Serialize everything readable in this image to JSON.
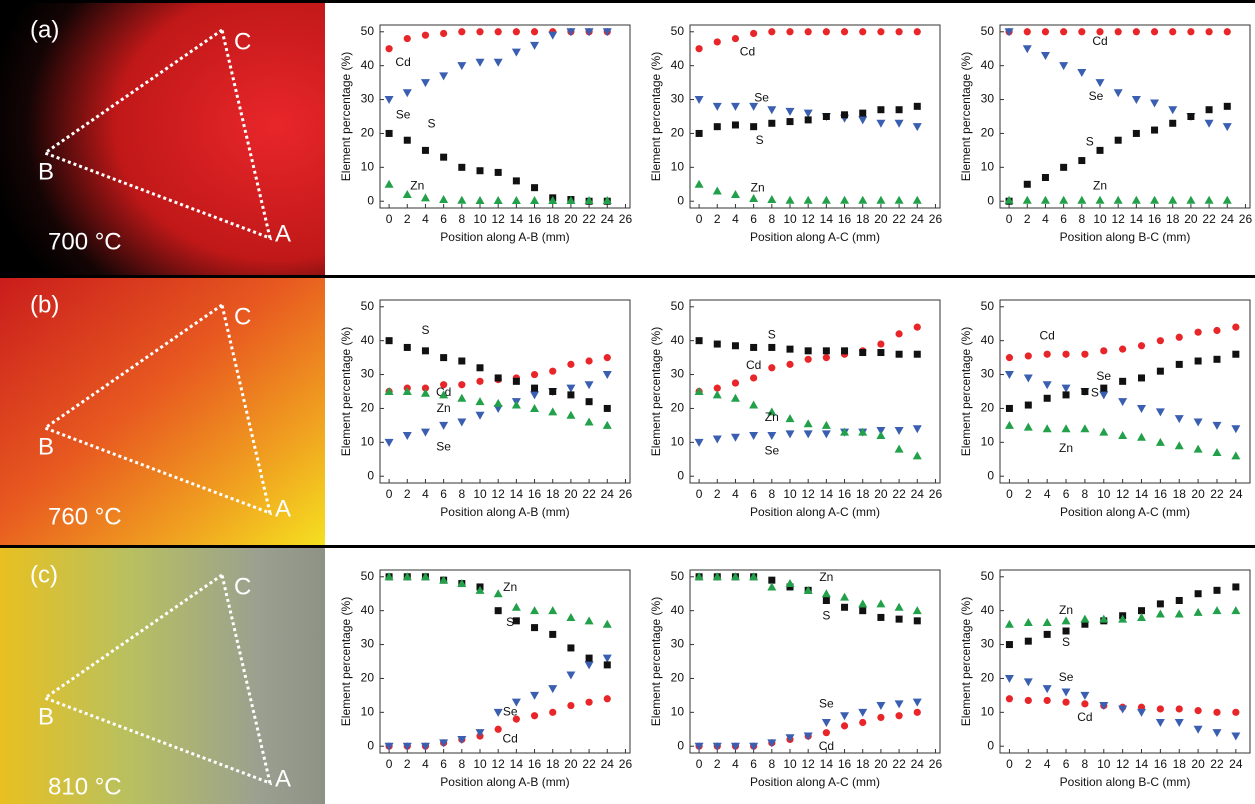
{
  "photos": [
    {
      "label": "(a)",
      "vertex_labels": [
        "C",
        "B",
        "A"
      ],
      "temperature": "700 °C"
    },
    {
      "label": "(b)",
      "vertex_labels": [
        "C",
        "B",
        "A"
      ],
      "temperature": "760 °C"
    },
    {
      "label": "(c)",
      "vertex_labels": [
        "C",
        "B",
        "A"
      ],
      "temperature": "810 °C"
    }
  ],
  "chart_data": [
    {
      "type": "scatter",
      "x_label": "Position along A-B (mm)",
      "y_label": "Element percentage (%)",
      "x": [
        0,
        2,
        4,
        6,
        8,
        10,
        12,
        14,
        16,
        18,
        20,
        22,
        24
      ],
      "xlim": [
        -1,
        26.5
      ],
      "ylim": [
        -2,
        52
      ],
      "xticks": [
        0,
        2,
        4,
        6,
        8,
        10,
        12,
        14,
        16,
        18,
        20,
        22,
        24,
        26
      ],
      "yticks": [
        0,
        10,
        20,
        30,
        40,
        50
      ],
      "series": [
        {
          "name": "Cd",
          "color": "#e8262a",
          "marker": "circle",
          "values": [
            45,
            48,
            49,
            49.5,
            50,
            50,
            50,
            50,
            50,
            50,
            50,
            50,
            50
          ]
        },
        {
          "name": "Se",
          "color": "#3a5fb0",
          "marker": "triangle-down",
          "values": [
            30,
            32,
            35,
            37,
            40,
            41,
            41,
            44,
            46,
            49,
            50,
            50,
            50
          ]
        },
        {
          "name": "S",
          "color": "#111111",
          "marker": "square",
          "values": [
            20,
            18,
            15,
            13,
            10,
            9,
            8.5,
            6,
            4,
            1,
            0.5,
            0,
            0
          ]
        },
        {
          "name": "Zn",
          "color": "#22a04a",
          "marker": "triangle-up",
          "values": [
            5,
            2,
            1,
            0.5,
            0.3,
            0.2,
            0.2,
            0.2,
            0.2,
            0.2,
            0.2,
            0.2,
            0.2
          ]
        }
      ]
    },
    {
      "type": "scatter",
      "x_label": "Position along A-C (mm)",
      "y_label": "Element percentage (%)",
      "x": [
        0,
        2,
        4,
        6,
        8,
        10,
        12,
        14,
        16,
        18,
        20,
        22,
        24
      ],
      "xlim": [
        -1,
        26.5
      ],
      "ylim": [
        -2,
        52
      ],
      "xticks": [
        0,
        2,
        4,
        6,
        8,
        10,
        12,
        14,
        16,
        18,
        20,
        22,
        24,
        26
      ],
      "yticks": [
        0,
        10,
        20,
        30,
        40,
        50
      ],
      "series": [
        {
          "name": "Cd",
          "color": "#e8262a",
          "marker": "circle",
          "values": [
            45,
            47,
            48,
            49.5,
            50,
            50,
            50,
            50,
            50,
            50,
            50,
            50,
            50
          ]
        },
        {
          "name": "Se",
          "color": "#3a5fb0",
          "marker": "triangle-down",
          "values": [
            30,
            28,
            28,
            28,
            27,
            26.5,
            26,
            25,
            24.5,
            24,
            23,
            23,
            22
          ]
        },
        {
          "name": "S",
          "color": "#111111",
          "marker": "square",
          "values": [
            20,
            22,
            22.5,
            22,
            23,
            23.5,
            24,
            25,
            25.5,
            26,
            27,
            27,
            28
          ]
        },
        {
          "name": "Zn",
          "color": "#22a04a",
          "marker": "triangle-up",
          "values": [
            5,
            3,
            2,
            0.8,
            0.5,
            0.3,
            0.3,
            0.3,
            0.3,
            0.3,
            0.3,
            0.3,
            0.3
          ]
        }
      ]
    },
    {
      "type": "scatter",
      "x_label": "Position along B-C (mm)",
      "y_label": "Element percentage (%)",
      "x": [
        0,
        2,
        4,
        6,
        8,
        10,
        12,
        14,
        16,
        18,
        20,
        22,
        24
      ],
      "xlim": [
        -1,
        26.5
      ],
      "ylim": [
        -2,
        52
      ],
      "xticks": [
        0,
        2,
        4,
        6,
        8,
        10,
        12,
        14,
        16,
        18,
        20,
        22,
        24,
        26
      ],
      "yticks": [
        0,
        10,
        20,
        30,
        40,
        50
      ],
      "series": [
        {
          "name": "Cd",
          "color": "#e8262a",
          "marker": "circle",
          "values": [
            50,
            50,
            50,
            50,
            50,
            50,
            50,
            50,
            50,
            50,
            50,
            50,
            50
          ]
        },
        {
          "name": "Se",
          "color": "#3a5fb0",
          "marker": "triangle-down",
          "values": [
            50,
            45,
            43,
            40,
            38,
            35,
            32,
            30,
            29,
            27,
            25,
            23,
            22
          ]
        },
        {
          "name": "S",
          "color": "#111111",
          "marker": "square",
          "values": [
            0,
            5,
            7,
            10,
            12,
            15,
            18,
            20,
            21,
            23,
            25,
            27,
            28
          ]
        },
        {
          "name": "Zn",
          "color": "#22a04a",
          "marker": "triangle-up",
          "values": [
            0.3,
            0.3,
            0.3,
            0.3,
            0.3,
            0.3,
            0.3,
            0.3,
            0.3,
            0.3,
            0.3,
            0.3,
            0.3
          ]
        }
      ]
    },
    {
      "type": "scatter",
      "x_label": "Position along A-B (mm)",
      "y_label": "Element percentage (%)",
      "x": [
        0,
        2,
        4,
        6,
        8,
        10,
        12,
        14,
        16,
        18,
        20,
        22,
        24
      ],
      "xlim": [
        -1,
        26.5
      ],
      "ylim": [
        -2,
        52
      ],
      "xticks": [
        0,
        2,
        4,
        6,
        8,
        10,
        12,
        14,
        16,
        18,
        20,
        22,
        24,
        26
      ],
      "yticks": [
        0,
        10,
        20,
        30,
        40,
        50
      ],
      "series": [
        {
          "name": "Cd",
          "color": "#e8262a",
          "marker": "circle",
          "values": [
            25,
            26,
            26,
            27,
            27,
            28,
            28.5,
            29,
            30,
            31,
            33,
            34,
            35
          ]
        },
        {
          "name": "Se",
          "color": "#3a5fb0",
          "marker": "triangle-down",
          "values": [
            10,
            12,
            13,
            15,
            16,
            18,
            20,
            22,
            24,
            25,
            26,
            27,
            30
          ]
        },
        {
          "name": "S",
          "color": "#111111",
          "marker": "square",
          "values": [
            40,
            38,
            37,
            35,
            34,
            32,
            29,
            28,
            26,
            25,
            24,
            22,
            20
          ]
        },
        {
          "name": "Zn",
          "color": "#22a04a",
          "marker": "triangle-up",
          "values": [
            25,
            25,
            24.5,
            24,
            23,
            22,
            21.5,
            21,
            20,
            19,
            18,
            16,
            15
          ]
        }
      ]
    },
    {
      "type": "scatter",
      "x_label": "Position along A-C (mm)",
      "y_label": "Element percentage (%)",
      "x": [
        0,
        2,
        4,
        6,
        8,
        10,
        12,
        14,
        16,
        18,
        20,
        22,
        24
      ],
      "xlim": [
        -1,
        26.5
      ],
      "ylim": [
        -2,
        52
      ],
      "xticks": [
        0,
        2,
        4,
        6,
        8,
        10,
        12,
        14,
        16,
        18,
        20,
        22,
        24,
        26
      ],
      "yticks": [
        0,
        10,
        20,
        30,
        40,
        50
      ],
      "series": [
        {
          "name": "Cd",
          "color": "#e8262a",
          "marker": "circle",
          "values": [
            25,
            26,
            27.5,
            29,
            32,
            33,
            34.5,
            35,
            36,
            37,
            39,
            42,
            44
          ]
        },
        {
          "name": "Se",
          "color": "#3a5fb0",
          "marker": "triangle-down",
          "values": [
            10,
            11,
            11.5,
            12,
            12,
            12.5,
            12.5,
            12.5,
            13,
            13,
            13.5,
            13.5,
            14
          ]
        },
        {
          "name": "S",
          "color": "#111111",
          "marker": "square",
          "values": [
            40,
            39,
            38.5,
            38,
            38,
            37.5,
            37,
            37,
            37,
            36.5,
            36.5,
            36,
            36
          ]
        },
        {
          "name": "Zn",
          "color": "#22a04a",
          "marker": "triangle-up",
          "values": [
            25,
            24,
            23,
            21,
            19,
            17,
            15.5,
            15,
            13,
            13,
            12,
            8,
            6
          ]
        }
      ]
    },
    {
      "type": "scatter",
      "x_label": "Position along A-C (mm)",
      "y_label": "Element percentage (%)",
      "x": [
        0,
        2,
        4,
        6,
        8,
        10,
        12,
        14,
        16,
        18,
        20,
        22,
        24
      ],
      "xlim": [
        -1,
        25.5
      ],
      "ylim": [
        -2,
        52
      ],
      "xticks": [
        0,
        2,
        4,
        6,
        8,
        10,
        12,
        14,
        16,
        18,
        20,
        22,
        24
      ],
      "yticks": [
        0,
        10,
        20,
        30,
        40,
        50
      ],
      "series": [
        {
          "name": "Cd",
          "color": "#e8262a",
          "marker": "circle",
          "values": [
            35,
            35.5,
            36,
            36,
            36,
            37,
            37.5,
            38.5,
            40,
            41,
            42.5,
            43,
            44
          ]
        },
        {
          "name": "Se",
          "color": "#3a5fb0",
          "marker": "triangle-down",
          "values": [
            30,
            29,
            27,
            26,
            25,
            24,
            22,
            20,
            19,
            17,
            16,
            15,
            14
          ]
        },
        {
          "name": "S",
          "color": "#111111",
          "marker": "square",
          "values": [
            20,
            21,
            23,
            24,
            25,
            26,
            28,
            29,
            31,
            33,
            34,
            34.5,
            36
          ]
        },
        {
          "name": "Zn",
          "color": "#22a04a",
          "marker": "triangle-up",
          "values": [
            15,
            14.5,
            14,
            14,
            14,
            13,
            12,
            11.5,
            10,
            9,
            8,
            7,
            6
          ]
        }
      ]
    },
    {
      "type": "scatter",
      "x_label": "Position along A-B (mm)",
      "y_label": "Element percentage (%)",
      "x": [
        0,
        2,
        4,
        6,
        8,
        10,
        12,
        14,
        16,
        18,
        20,
        22,
        24
      ],
      "xlim": [
        -1,
        26.5
      ],
      "ylim": [
        -2,
        52
      ],
      "xticks": [
        0,
        2,
        4,
        6,
        8,
        10,
        12,
        14,
        16,
        18,
        20,
        22,
        24,
        26
      ],
      "yticks": [
        0,
        10,
        20,
        30,
        40,
        50
      ],
      "series": [
        {
          "name": "Cd",
          "color": "#e8262a",
          "marker": "circle",
          "values": [
            0,
            0,
            0,
            1,
            2,
            3,
            5,
            8,
            9,
            10,
            12,
            13,
            14
          ]
        },
        {
          "name": "Se",
          "color": "#3a5fb0",
          "marker": "triangle-down",
          "values": [
            0,
            0,
            0,
            1,
            2,
            4,
            10,
            13,
            15,
            17,
            21,
            24,
            26
          ]
        },
        {
          "name": "S",
          "color": "#111111",
          "marker": "square",
          "values": [
            50,
            50,
            50,
            49,
            48,
            47,
            40,
            37,
            35,
            33,
            29,
            26,
            24
          ]
        },
        {
          "name": "Zn",
          "color": "#22a04a",
          "marker": "triangle-up",
          "values": [
            50,
            50,
            50,
            49,
            48,
            46,
            45,
            41,
            40,
            40,
            38,
            37,
            36
          ]
        }
      ]
    },
    {
      "type": "scatter",
      "x_label": "Position along A-C (mm)",
      "y_label": "Element percentage (%)",
      "x": [
        0,
        2,
        4,
        6,
        8,
        10,
        12,
        14,
        16,
        18,
        20,
        22,
        24
      ],
      "xlim": [
        -1,
        26.5
      ],
      "ylim": [
        -2,
        52
      ],
      "xticks": [
        0,
        2,
        4,
        6,
        8,
        10,
        12,
        14,
        16,
        18,
        20,
        22,
        24,
        26
      ],
      "yticks": [
        0,
        10,
        20,
        30,
        40,
        50
      ],
      "series": [
        {
          "name": "Cd",
          "color": "#e8262a",
          "marker": "circle",
          "values": [
            0,
            0,
            0,
            0,
            1,
            2,
            3,
            4,
            6,
            7,
            8.5,
            9,
            10
          ]
        },
        {
          "name": "Se",
          "color": "#3a5fb0",
          "marker": "triangle-down",
          "values": [
            0,
            0,
            0,
            0,
            1,
            2.5,
            3,
            7,
            9,
            10,
            12,
            12.5,
            13
          ]
        },
        {
          "name": "S",
          "color": "#111111",
          "marker": "square",
          "values": [
            50,
            50,
            50,
            50,
            49,
            47,
            46,
            43,
            41,
            40,
            38,
            37.5,
            37
          ]
        },
        {
          "name": "Zn",
          "color": "#22a04a",
          "marker": "triangle-up",
          "values": [
            50,
            50,
            50,
            50,
            47,
            48,
            46,
            45,
            44,
            42,
            42,
            41,
            40
          ]
        }
      ]
    },
    {
      "type": "scatter",
      "x_label": "Position along B-C (mm)",
      "y_label": "Element percentage (%)",
      "x": [
        0,
        2,
        4,
        6,
        8,
        10,
        12,
        14,
        16,
        18,
        20,
        22,
        24
      ],
      "xlim": [
        -1,
        25.5
      ],
      "ylim": [
        -2,
        52
      ],
      "xticks": [
        0,
        2,
        4,
        6,
        8,
        10,
        12,
        14,
        16,
        18,
        20,
        22,
        24
      ],
      "yticks": [
        0,
        10,
        20,
        30,
        40,
        50
      ],
      "series": [
        {
          "name": "Cd",
          "color": "#e8262a",
          "marker": "circle",
          "values": [
            14,
            13.5,
            13.5,
            13,
            12.5,
            12,
            11.5,
            11.5,
            11,
            11,
            10.5,
            10,
            10
          ]
        },
        {
          "name": "Se",
          "color": "#3a5fb0",
          "marker": "triangle-down",
          "values": [
            20,
            19,
            17,
            16,
            15,
            12,
            11,
            10,
            7,
            7,
            5,
            4,
            3
          ]
        },
        {
          "name": "S",
          "color": "#111111",
          "marker": "square",
          "values": [
            30,
            31,
            33,
            34,
            36,
            37,
            38.5,
            40,
            42,
            43,
            45,
            46,
            47
          ]
        },
        {
          "name": "Zn",
          "color": "#22a04a",
          "marker": "triangle-up",
          "values": [
            36,
            36.5,
            36.5,
            37,
            37.5,
            37.5,
            37.5,
            38,
            39,
            39,
            39.5,
            40,
            40
          ]
        }
      ]
    }
  ]
}
